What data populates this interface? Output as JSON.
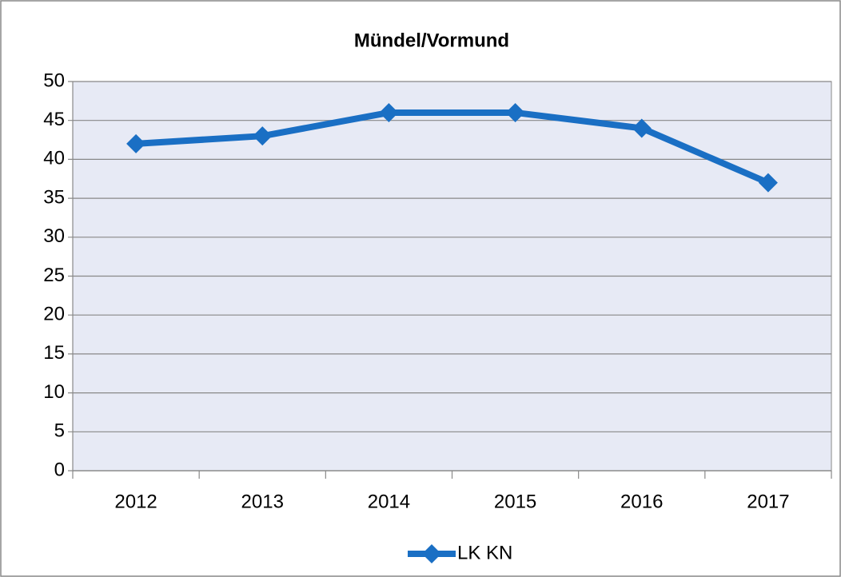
{
  "chart_data": {
    "type": "line",
    "title": "Mündel/Vormund",
    "categories": [
      "2012",
      "2013",
      "2014",
      "2015",
      "2016",
      "2017"
    ],
    "series": [
      {
        "name": "LK KN",
        "color": "#1a6fc4",
        "values": [
          42,
          43,
          46,
          46,
          44,
          37
        ]
      }
    ],
    "ylim": [
      0,
      50
    ],
    "yticks": [
      0,
      5,
      10,
      15,
      20,
      25,
      30,
      35,
      40,
      45,
      50
    ],
    "grid": true,
    "legend": "bottom"
  }
}
